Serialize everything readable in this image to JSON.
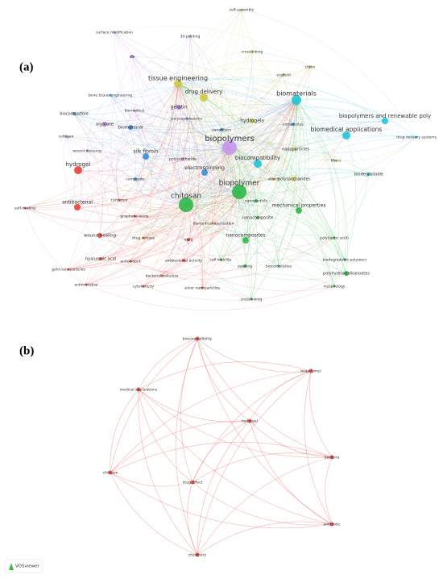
{
  "panel_a": {
    "label": "(a)",
    "nodes": [
      {
        "label": "self-assembly",
        "color": "#cfc842"
      },
      {
        "label": "surface modification",
        "color": "#b784e6"
      },
      {
        "label": "3d printing",
        "color": "#b784e6"
      },
      {
        "label": "crosslinking",
        "color": "#cfc842"
      },
      {
        "label": "pla",
        "color": "#b784e6"
      },
      {
        "label": "chitin",
        "color": "#cfc842"
      },
      {
        "label": "scaffold",
        "color": "#cfc842"
      },
      {
        "label": "tissue engineering",
        "color": "#cfc842"
      },
      {
        "label": "drug delivery",
        "color": "#cfc842"
      },
      {
        "label": "biomaterials",
        "color": "#22c3d6"
      },
      {
        "label": "bone tissue engineering",
        "color": "#3a8fd6"
      },
      {
        "label": "gelatin",
        "color": "#b784e6"
      },
      {
        "label": "biomedical",
        "color": "#b784e6"
      },
      {
        "label": "polycaprolactone",
        "color": "#3a8fd6"
      },
      {
        "label": "hydrogels",
        "color": "#cfc842"
      },
      {
        "label": "composites",
        "color": "#3a8fd6"
      },
      {
        "label": "biocompatible",
        "color": "#3a8fd6"
      },
      {
        "label": "alginate",
        "color": "#b784e6"
      },
      {
        "label": "biopolymers and renewable poly",
        "color": "#22c3d6"
      },
      {
        "label": "biomedical applications",
        "color": "#22c3d6"
      },
      {
        "label": "biomaterial",
        "color": "#3a8fd6"
      },
      {
        "label": "nanofibers",
        "color": "#3a8fd6"
      },
      {
        "label": "nanoparticles",
        "color": "#cfc842"
      },
      {
        "label": "collagen",
        "color": "#b784e6"
      },
      {
        "label": "drug delivery systems",
        "color": "#22c3d6"
      },
      {
        "label": "wound dressing",
        "color": "#b784e6"
      },
      {
        "label": "biopolymers",
        "color": "#c596ee"
      },
      {
        "label": "silk fibroin",
        "color": "#3a8fd6"
      },
      {
        "label": "polysaccharide",
        "color": "#b784e6"
      },
      {
        "label": "fibers",
        "color": "#cfc842"
      },
      {
        "label": "biocompatibility",
        "color": "#22c3d6"
      },
      {
        "label": "hydrogel",
        "color": "#e8413c"
      },
      {
        "label": "polysaccharides",
        "color": "#cfc842"
      },
      {
        "label": "biodegradable",
        "color": "#22c3d6"
      },
      {
        "label": "electrospinning",
        "color": "#3a8fd6"
      },
      {
        "label": "composite",
        "color": "#3a8fd6"
      },
      {
        "label": "starch",
        "color": "#f08a24"
      },
      {
        "label": "biopolymer",
        "color": "#2fb84a"
      },
      {
        "label": "antibacterial",
        "color": "#e8413c"
      },
      {
        "label": "curcumin",
        "color": "#e8413c"
      },
      {
        "label": "chitosan",
        "color": "#2fb84a"
      },
      {
        "label": "nanoparticle",
        "color": "#2fb84a"
      },
      {
        "label": "mechanical properties",
        "color": "#2fb84a"
      },
      {
        "label": "graphene oxide",
        "color": "#e8413c"
      },
      {
        "label": "self-healing",
        "color": "#e8413c"
      },
      {
        "label": "biomedical application",
        "color": "#f08a24"
      },
      {
        "label": "nanocomposite",
        "color": "#2fb84a"
      },
      {
        "label": "wound healing",
        "color": "#e8413c"
      },
      {
        "label": "drug release",
        "color": "#f08a24"
      },
      {
        "label": "egcg",
        "color": "#e8413c"
      },
      {
        "label": "nanocomposites",
        "color": "#2fb84a"
      },
      {
        "label": "poly(lactic acid)",
        "color": "#2fb84a"
      },
      {
        "label": "hyaluronic acid",
        "color": "#e8413c"
      },
      {
        "label": "antioxidant",
        "color": "#e8413c"
      },
      {
        "label": "antibacterial activity",
        "color": "#e8413c"
      },
      {
        "label": "cell viability",
        "color": "#2fb84a"
      },
      {
        "label": "biodegradable polymers",
        "color": "#2fb84a"
      },
      {
        "label": "gold nanoparticles",
        "color": "#e8413c"
      },
      {
        "label": "swelling",
        "color": "#2fb84a"
      },
      {
        "label": "biocomposites",
        "color": "#2fb84a"
      },
      {
        "label": "bacterial cellulose",
        "color": "#e8413c"
      },
      {
        "label": "polyhydroxyalkanoates",
        "color": "#2fb84a"
      },
      {
        "label": "antimicrobial",
        "color": "#e8413c"
      },
      {
        "label": "cytotoxicity",
        "color": "#e8413c"
      },
      {
        "label": "silver nanoparticles",
        "color": "#e8413c"
      },
      {
        "label": "morphology",
        "color": "#2fb84a"
      },
      {
        "label": "crosslinking",
        "color": "#2fb84a"
      }
    ]
  },
  "panel_b": {
    "label": "(b)",
    "color": "#e8584f",
    "nodes": [
      {
        "label": "biocompatibility"
      },
      {
        "label": "biopolymer"
      },
      {
        "label": "medical applications"
      },
      {
        "label": "hydrogel"
      },
      {
        "label": "bacteria"
      },
      {
        "label": "chitosan"
      },
      {
        "label": "drug effect"
      },
      {
        "label": "antibiotic"
      },
      {
        "label": "chemistry"
      }
    ]
  },
  "footer": {
    "logo_text": "VOSviewer"
  }
}
